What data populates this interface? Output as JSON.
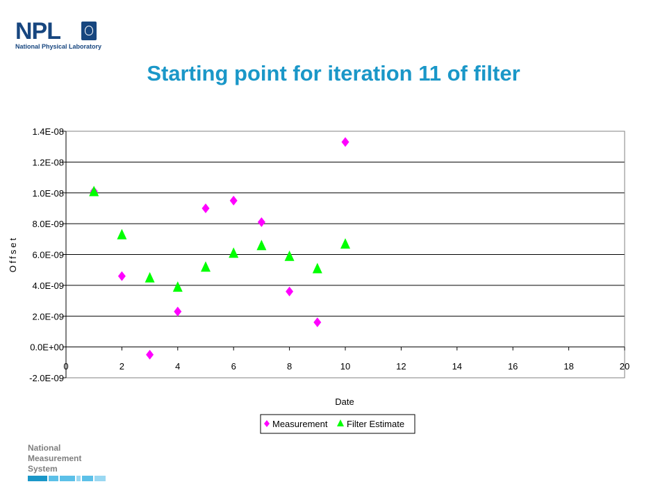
{
  "header": {
    "logo_text": "NPL",
    "logo_subtitle": "National Physical Laboratory",
    "title": "Starting point for iteration 11 of filter"
  },
  "footer": {
    "nms_lines": [
      "National",
      "Measurement",
      "System"
    ]
  },
  "colors": {
    "title": "#1a97c8",
    "logo": "#17467f",
    "measurement": "#ff00ff",
    "filter_estimate": "#00ff00",
    "footer_text": "#7f7f7f",
    "footer_bars": [
      "#1a97c8",
      "#5cc0e8",
      "#9ad8f2"
    ]
  },
  "chart_data": {
    "type": "scatter",
    "title": "",
    "xlabel": "Date",
    "ylabel": "Offset",
    "xlim": [
      0,
      20
    ],
    "ylim": [
      -2e-09,
      1.4e-08
    ],
    "x_ticks": [
      "0",
      "2",
      "4",
      "6",
      "8",
      "10",
      "12",
      "14",
      "16",
      "18",
      "20"
    ],
    "y_ticks": [
      "-2.0E-09",
      "0.0E+00",
      "2.0E-09",
      "4.0E-09",
      "6.0E-09",
      "8.0E-09",
      "1.0E-08",
      "1.2E-08",
      "1.4E-08"
    ],
    "grid": "horizontal",
    "legend": "bottom",
    "series": [
      {
        "name": "Measurement",
        "marker": "diamond",
        "color": "#ff00ff",
        "x": [
          1,
          2,
          3,
          4,
          5,
          6,
          7,
          8,
          9,
          10
        ],
        "y": [
          1.01e-08,
          4.6e-09,
          -5e-10,
          2.3e-09,
          9e-09,
          9.5e-09,
          8.1e-09,
          3.6e-09,
          1.6e-09,
          1.33e-08
        ]
      },
      {
        "name": "Filter Estimate",
        "marker": "triangle",
        "color": "#00ff00",
        "x": [
          1,
          2,
          3,
          4,
          5,
          6,
          7,
          8,
          9,
          10
        ],
        "y": [
          1.01e-08,
          7.3e-09,
          4.5e-09,
          3.9e-09,
          5.2e-09,
          6.1e-09,
          6.6e-09,
          5.9e-09,
          5.1e-09,
          6.7e-09
        ]
      }
    ]
  }
}
